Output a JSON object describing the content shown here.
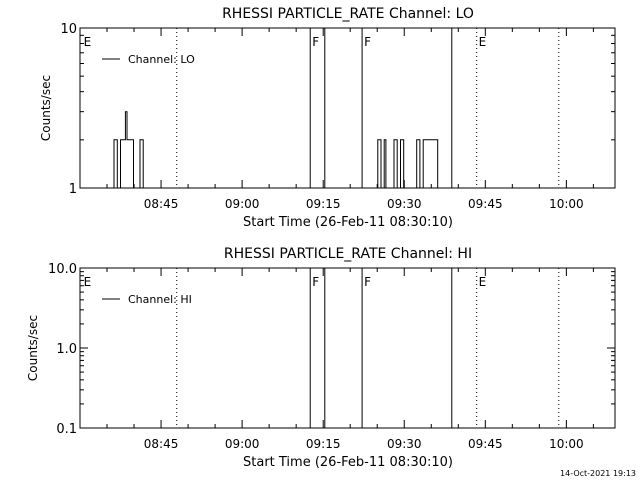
{
  "footer": {
    "timestamp": "14-Oct-2021 19:13"
  },
  "chart_data": [
    {
      "type": "line",
      "title": "RHESSI PARTICLE_RATE Channel: LO",
      "xlabel": "Start Time (26-Feb-11 08:30:10)",
      "ylabel": "Counts/sec",
      "x_range_min": [
        0,
        99
      ],
      "x_ticks": [
        {
          "m": 15,
          "label": "08:45"
        },
        {
          "m": 30,
          "label": "09:00"
        },
        {
          "m": 45,
          "label": "09:15"
        },
        {
          "m": 60,
          "label": "09:30"
        },
        {
          "m": 75,
          "label": "09:45"
        },
        {
          "m": 90,
          "label": "10:00"
        }
      ],
      "y_scale": "log",
      "y_range": [
        1,
        10
      ],
      "y_ticks": [
        {
          "v": 1,
          "label": "1"
        },
        {
          "v": 10,
          "label": "10"
        }
      ],
      "legend": "Channel: LO",
      "legend_position": "top-left",
      "markers": [
        {
          "m": 0.3,
          "label": "E",
          "style": "none"
        },
        {
          "m": 17.9,
          "label": "",
          "style": "dotted"
        },
        {
          "m": 42.6,
          "label": "F",
          "style": "solid"
        },
        {
          "m": 45.3,
          "label": "",
          "style": "solid"
        },
        {
          "m": 52.2,
          "label": "F",
          "style": "solid"
        },
        {
          "m": 68.8,
          "label": "",
          "style": "solid"
        },
        {
          "m": 73.4,
          "label": "E",
          "style": "dotted"
        },
        {
          "m": 88.6,
          "label": "",
          "style": "dotted"
        }
      ],
      "series": [
        {
          "x": [
            6.0,
            6.3,
            6.6,
            6.9,
            7.2,
            7.5,
            7.8,
            8.1,
            8.4,
            8.7,
            9.0,
            9.3,
            9.6,
            9.9,
            10.2,
            10.8,
            11.1,
            11.4,
            11.7,
            12.0,
            54.8,
            55.1,
            55.4,
            55.7,
            56.0,
            56.3,
            56.6,
            57.8,
            58.1,
            58.4,
            58.7,
            59.0,
            59.3,
            59.6,
            59.9,
            62.0,
            62.3,
            62.6,
            62.9,
            63.2,
            63.5,
            63.8,
            64.1,
            64.4,
            64.7,
            65.0,
            65.3,
            65.6,
            65.9,
            66.2,
            66.5
          ],
          "y": [
            1,
            2,
            2,
            1,
            1,
            2,
            2,
            2,
            3,
            2,
            2,
            2,
            2,
            1,
            1,
            1,
            2,
            2,
            1,
            1,
            1,
            2,
            2,
            1,
            1,
            2,
            1,
            1,
            2,
            2,
            1,
            1,
            2,
            2,
            1,
            1,
            2,
            2,
            1,
            1,
            2,
            2,
            2,
            2,
            2,
            2,
            2,
            2,
            2,
            1,
            1
          ]
        }
      ]
    },
    {
      "type": "line",
      "title": "RHESSI PARTICLE_RATE Channel: HI",
      "xlabel": "Start Time (26-Feb-11 08:30:10)",
      "ylabel": "Counts/sec",
      "x_range_min": [
        0,
        99
      ],
      "x_ticks": [
        {
          "m": 15,
          "label": "08:45"
        },
        {
          "m": 30,
          "label": "09:00"
        },
        {
          "m": 45,
          "label": "09:15"
        },
        {
          "m": 60,
          "label": "09:30"
        },
        {
          "m": 75,
          "label": "09:45"
        },
        {
          "m": 90,
          "label": "10:00"
        }
      ],
      "y_scale": "log",
      "y_range": [
        0.1,
        10
      ],
      "y_ticks": [
        {
          "v": 0.1,
          "label": "0.1"
        },
        {
          "v": 1,
          "label": "1.0"
        },
        {
          "v": 10,
          "label": "10.0"
        }
      ],
      "legend": "Channel: HI",
      "legend_position": "top-left",
      "markers": [
        {
          "m": 0.3,
          "label": "E",
          "style": "none"
        },
        {
          "m": 17.9,
          "label": "",
          "style": "dotted"
        },
        {
          "m": 42.6,
          "label": "F",
          "style": "solid"
        },
        {
          "m": 45.3,
          "label": "",
          "style": "solid"
        },
        {
          "m": 52.2,
          "label": "F",
          "style": "solid"
        },
        {
          "m": 68.8,
          "label": "",
          "style": "solid"
        },
        {
          "m": 73.4,
          "label": "E",
          "style": "dotted"
        },
        {
          "m": 88.6,
          "label": "",
          "style": "dotted"
        }
      ],
      "series": []
    }
  ]
}
